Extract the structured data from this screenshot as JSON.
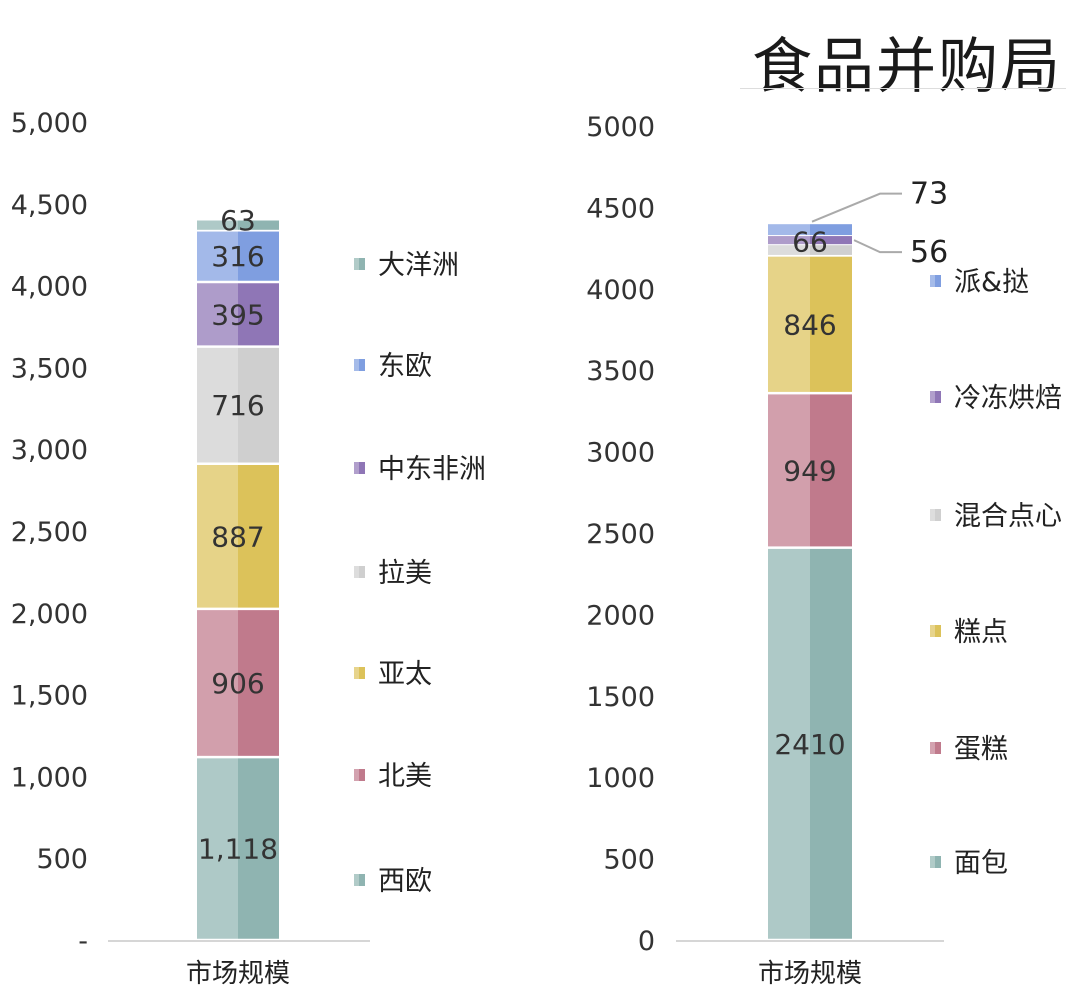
{
  "brand": "食品并购局",
  "chart_data": [
    {
      "type": "bar",
      "stacked": true,
      "categories": [
        "市场规模"
      ],
      "yticks": [
        "-",
        "500",
        "1,000",
        "1,500",
        "2,000",
        "2,500",
        "3,000",
        "3,500",
        "4,000",
        "4,500",
        "5,000"
      ],
      "ylim": [
        0,
        5000
      ],
      "legend": "right",
      "series": [
        {
          "name": "西欧",
          "values": [
            1118
          ],
          "label": "1,118",
          "color": "#8fb4b1"
        },
        {
          "name": "北美",
          "values": [
            906
          ],
          "label": "906",
          "color": "#c07a8c"
        },
        {
          "name": "亚太",
          "values": [
            887
          ],
          "label": "887",
          "color": "#dcc25a"
        },
        {
          "name": "拉美",
          "values": [
            716
          ],
          "label": "716",
          "color": "#cfcfcf"
        },
        {
          "name": "中东非洲",
          "values": [
            395
          ],
          "label": "395",
          "color": "#8f76b6"
        },
        {
          "name": "东欧",
          "values": [
            316
          ],
          "label": "316",
          "color": "#7f9ee0"
        },
        {
          "name": "大洋洲",
          "values": [
            63
          ],
          "label": "63",
          "color": "#8fb4b1"
        }
      ]
    },
    {
      "type": "bar",
      "stacked": true,
      "categories": [
        "市场规模"
      ],
      "yticks": [
        "0",
        "500",
        "1000",
        "1500",
        "2000",
        "2500",
        "3000",
        "3500",
        "4000",
        "4500",
        "5000"
      ],
      "ylim": [
        0,
        5000
      ],
      "legend": "right",
      "series": [
        {
          "name": "面包",
          "values": [
            2410
          ],
          "label": "2410",
          "color": "#8fb4b1"
        },
        {
          "name": "蛋糕",
          "values": [
            949
          ],
          "label": "949",
          "color": "#c07a8c"
        },
        {
          "name": "糕点",
          "values": [
            846
          ],
          "label": "846",
          "color": "#dcc25a"
        },
        {
          "name": "混合点心",
          "values": [
            66
          ],
          "label": "66",
          "color": "#cfcfcf"
        },
        {
          "name": "冷冻烘焙",
          "values": [
            56
          ],
          "label": "56",
          "color": "#8f76b6"
        },
        {
          "name": "派&挞",
          "values": [
            73
          ],
          "label": "73",
          "color": "#7f9ee0"
        }
      ]
    }
  ]
}
